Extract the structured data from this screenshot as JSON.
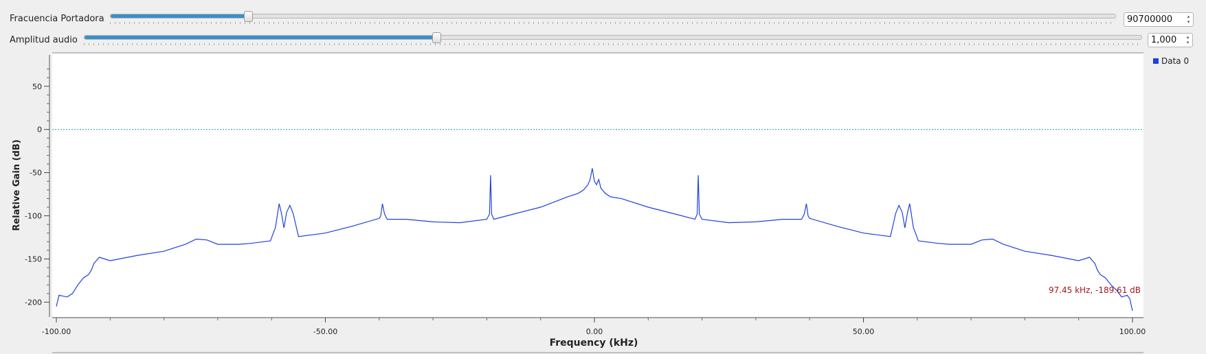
{
  "controls": {
    "carrier": {
      "label": "Fracuencia Portadora",
      "value": "90700000",
      "position_fraction": 0.137
    },
    "audio": {
      "label": "Amplitud audio",
      "value": "1,000",
      "position_fraction": 0.333
    }
  },
  "legend": {
    "label": "Data 0",
    "color": "#1f3fe0"
  },
  "marker": {
    "text": "97.45 kHz, -189.61 dB",
    "color": "#a01818"
  },
  "chart_data": {
    "type": "line",
    "title": "",
    "xlabel": "Frequency (kHz)",
    "ylabel": "Relative Gain (dB)",
    "xlim": [
      -100,
      100
    ],
    "ylim": [
      -210,
      80
    ],
    "x_ticks": [
      -100,
      -50,
      0,
      50,
      100
    ],
    "x_tick_labels": [
      "-100.00",
      "-50.00",
      "0.00",
      "50.00",
      "100.00"
    ],
    "y_ticks": [
      -200,
      -150,
      -100,
      -50,
      0,
      50
    ],
    "y_tick_labels": [
      "-200",
      "-150",
      "-100",
      "-50",
      "0",
      "50"
    ],
    "reference_line": {
      "y": 0,
      "color": "#1a9aa0",
      "style": "dotted"
    },
    "grid": false,
    "legend_position": "right",
    "series": [
      {
        "name": "Data 0",
        "color": "#1f3fe0",
        "x": [
          -100,
          -99.5,
          -98,
          -97,
          -96,
          -95,
          -94,
          -93.5,
          -93,
          -92,
          -90,
          -85,
          -80,
          -78,
          -76,
          -74,
          -72,
          -70,
          -66,
          -64,
          -60.2,
          -59.8,
          -59.3,
          -58.6,
          -58.2,
          -57.7,
          -57.2,
          -56.6,
          -56,
          -55,
          -50,
          -45,
          -40,
          -39.7,
          -39.4,
          -39,
          -38.5,
          -35,
          -30,
          -25,
          -20,
          -19.5,
          -19.3,
          -19.1,
          -18.7,
          -15,
          -10,
          -5,
          -3,
          -2,
          -1.2,
          -0.8,
          -0.4,
          0,
          0.4,
          0.8,
          1.2,
          2,
          3,
          5,
          10,
          15,
          18.7,
          19.1,
          19.3,
          19.5,
          20,
          25,
          30,
          35,
          38.5,
          39,
          39.4,
          39.7,
          40,
          45,
          50,
          55,
          56,
          56.6,
          57.2,
          57.7,
          58.2,
          58.6,
          59.3,
          59.8,
          60.2,
          64,
          66,
          70,
          72,
          74,
          76,
          78,
          80,
          85,
          90,
          92,
          93,
          93.5,
          94,
          95,
          96,
          97,
          97.45,
          98,
          99,
          99.5,
          100
        ],
        "y": [
          -205,
          -192,
          -194,
          -190,
          -180,
          -172,
          -168,
          -163,
          -155,
          -148,
          -152,
          -146,
          -141,
          -137,
          -133,
          -127,
          -128,
          -133,
          -133,
          -132,
          -129,
          -122,
          -114,
          -86,
          -96,
          -114,
          -96,
          -88,
          -97,
          -124,
          -120,
          -112,
          -103,
          -100,
          -86,
          -98,
          -104,
          -104,
          -107,
          -108,
          -104,
          -98,
          -53,
          -98,
          -104,
          -98,
          -90,
          -78,
          -74,
          -70,
          -64,
          -58,
          -45,
          -60,
          -64,
          -58,
          -68,
          -74,
          -78,
          -80,
          -90,
          -98,
          -104,
          -98,
          -53,
          -98,
          -104,
          -108,
          -107,
          -104,
          -104,
          -98,
          -86,
          -100,
          -103,
          -112,
          -120,
          -124,
          -97,
          -88,
          -96,
          -114,
          -96,
          -86,
          -114,
          -122,
          -129,
          -132,
          -133,
          -133,
          -128,
          -127,
          -133,
          -137,
          -141,
          -146,
          -152,
          -148,
          -155,
          -163,
          -168,
          -172,
          -180,
          -186,
          -189.61,
          -194,
          -192,
          -196,
          -210
        ]
      }
    ]
  }
}
